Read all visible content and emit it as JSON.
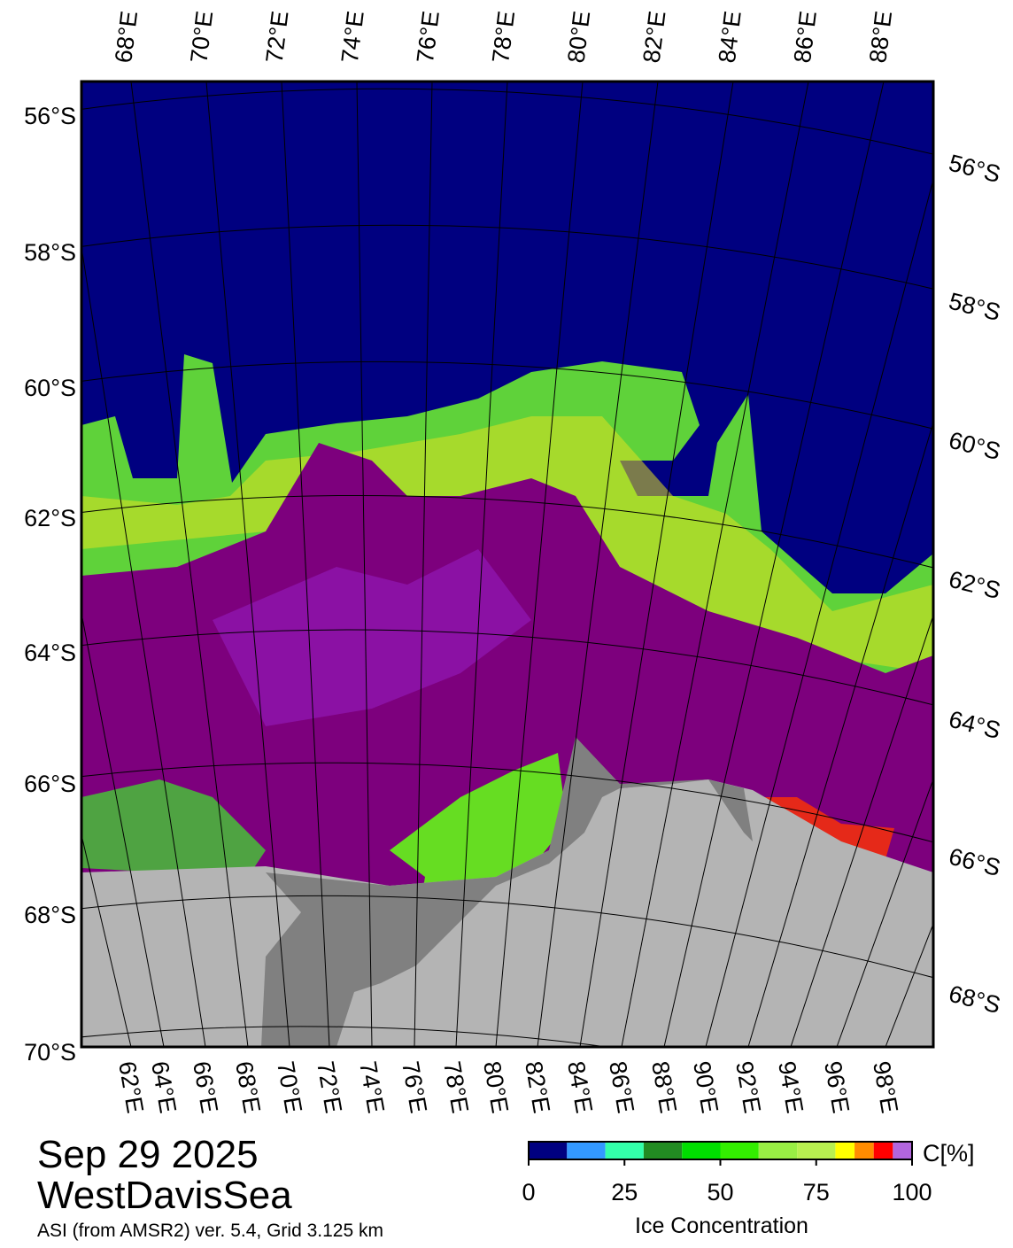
{
  "map": {
    "top_labels": [
      "68°E",
      "70°E",
      "72°E",
      "74°E",
      "76°E",
      "78°E",
      "80°E",
      "82°E",
      "84°E",
      "86°E",
      "88°E"
    ],
    "bottom_labels": [
      "62°E",
      "64°E",
      "66°E",
      "68°E",
      "70°E",
      "72°E",
      "74°E",
      "76°E",
      "78°E",
      "80°E",
      "82°E",
      "84°E",
      "86°E",
      "88°E",
      "90°E",
      "92°E",
      "94°E",
      "96°E",
      "98°E"
    ],
    "left_labels": [
      "56°S",
      "58°S",
      "60°S",
      "62°S",
      "64°S",
      "66°S",
      "68°S",
      "70°S"
    ],
    "right_labels": [
      "56°S",
      "58°S",
      "60°S",
      "62°S",
      "64°S",
      "66°S",
      "68°S"
    ]
  },
  "info": {
    "date": "Sep 29 2025",
    "region": "WestDavisSea",
    "source": "ASI (from AMSR2) ver. 5.4,  Grid 3.125 km"
  },
  "colorbar": {
    "unit": "C[%]",
    "label": "Ice Concentration",
    "lim": [
      0,
      100
    ],
    "ticks": [
      0,
      25,
      50,
      75,
      100
    ],
    "levels": [
      0,
      10,
      20,
      30,
      40,
      50,
      60,
      70,
      80,
      85,
      90,
      95,
      100
    ],
    "colors": [
      "#000080",
      "#3399ff",
      "#33ffaa",
      "#228b22",
      "#00dd00",
      "#33ee00",
      "#99ee44",
      "#b8f050",
      "#ffff00",
      "#ff8c00",
      "#ff0000",
      "#b266dd"
    ]
  }
}
